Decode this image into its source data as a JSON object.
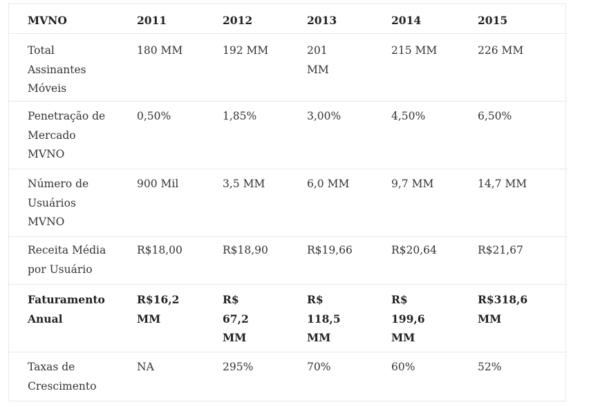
{
  "table": {
    "headers": [
      "MVNO",
      "2011",
      "2012",
      "2013",
      "2014",
      "2015"
    ],
    "rows": [
      {
        "label": "Total\nAssinantes\nMóveis",
        "values": [
          "180 MM",
          "192 MM",
          "201\nMM",
          "215 MM",
          "226 MM"
        ]
      },
      {
        "label": "Penetração de\nMercado\nMVNO",
        "values": [
          "0,50%",
          "1,85%",
          "3,00%",
          "4,50%",
          "6,50%"
        ]
      },
      {
        "label": "Número de\nUsuários\nMVNO",
        "values": [
          "900 Mil",
          "3,5 MM",
          "6,0 MM",
          "9,7 MM",
          "14,7 MM"
        ]
      },
      {
        "label": "Receita Média\npor Usuário",
        "values": [
          "R$18,00",
          "R$18,90",
          "R$19,66",
          "R$20,64",
          "R$21,67"
        ]
      },
      {
        "label": "Faturamento\nAnual",
        "values": [
          "R$16,2\nMM",
          "R$\n67,2\nMM",
          "R$\n118,5\nMM",
          "R$\n199,6\nMM",
          "R$318,6\nMM"
        ]
      },
      {
        "label": "Taxas de\nCrescimento",
        "values": [
          "NA",
          "295%",
          "70%",
          "60%",
          "52%"
        ]
      }
    ]
  }
}
